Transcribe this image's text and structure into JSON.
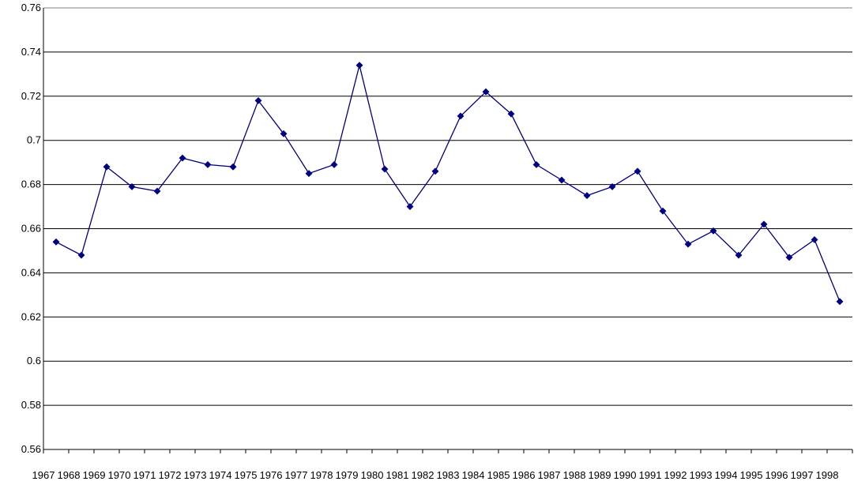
{
  "chart_data": {
    "type": "line",
    "x": [
      "1967",
      "1968",
      "1969",
      "1970",
      "1971",
      "1972",
      "1973",
      "1974",
      "1975",
      "1976",
      "1977",
      "1978",
      "1979",
      "1980",
      "1981",
      "1982",
      "1983",
      "1984",
      "1985",
      "1986",
      "1987",
      "1988",
      "1989",
      "1990",
      "1991",
      "1992",
      "1993",
      "1994",
      "1995",
      "1996",
      "1997",
      "1998"
    ],
    "y_ticks": [
      "0.56",
      "0.58",
      "0.6",
      "0.62",
      "0.64",
      "0.66",
      "0.68",
      "0.7",
      "0.72",
      "0.74",
      "0.76"
    ],
    "series": [
      {
        "values": [
          0.654,
          0.648,
          0.688,
          0.679,
          0.677,
          0.692,
          0.689,
          0.688,
          0.718,
          0.703,
          0.685,
          0.689,
          0.734,
          0.687,
          0.67,
          0.686,
          0.711,
          0.722,
          0.712,
          0.689,
          0.682,
          0.675,
          0.679,
          0.686,
          0.668,
          0.653,
          0.659,
          0.648,
          0.662,
          0.647,
          0.655,
          0.627
        ],
        "color": "#000080",
        "marker": "diamond"
      }
    ],
    "ylim": [
      0.56,
      0.76
    ],
    "grid": true,
    "title": "",
    "xlabel": "",
    "ylabel": ""
  }
}
